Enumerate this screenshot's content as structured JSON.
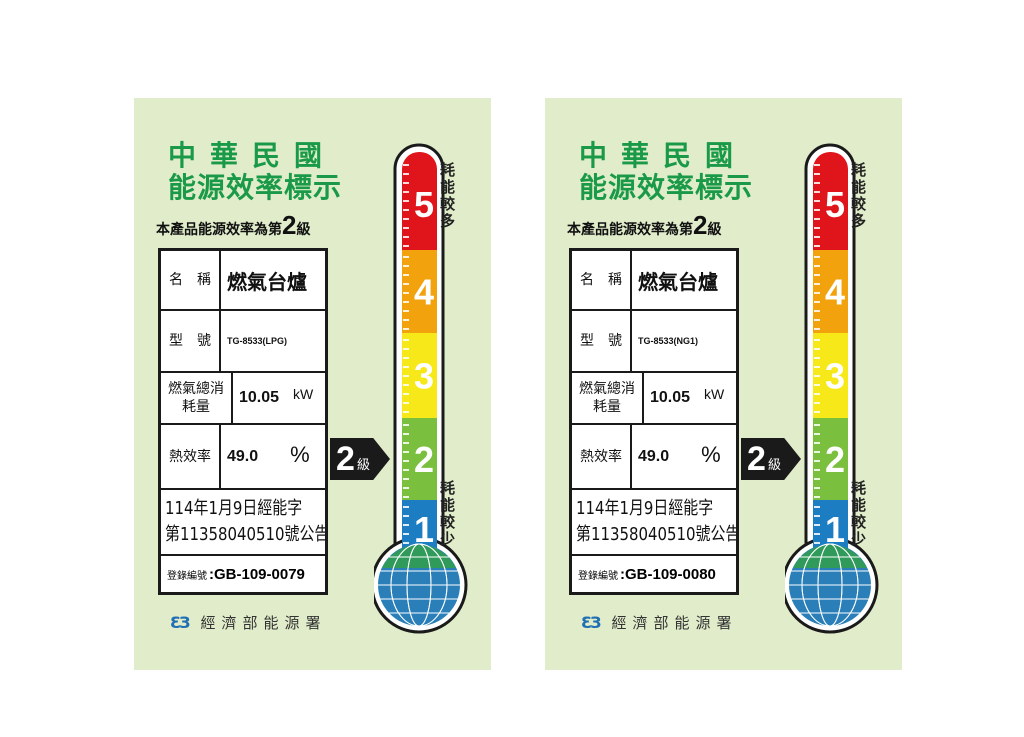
{
  "common": {
    "title_line1": "中華民國",
    "title_line2": "能源效率標示",
    "grade_prefix": "本產品能源效率為第",
    "grade_number": "2",
    "grade_suffix": "級",
    "name_key": "名　稱",
    "model_key": "型　號",
    "consumption_key": "燃氣總消耗量",
    "efficiency_key": "熱效率",
    "reg_key": "登錄編號",
    "agency": "經濟部能源署",
    "agency_logo": "ƐЗ",
    "more_energy": "耗能較多",
    "less_energy": "耗能較少",
    "scale": [
      "5",
      "4",
      "3",
      "2",
      "1"
    ],
    "scale_colors": [
      "#e0141b",
      "#f2a20c",
      "#f7e81a",
      "#7bbf3f",
      "#1c7dc3"
    ],
    "current_grade": 2,
    "title_color": "#1a9a48",
    "background": "#e1edca"
  },
  "labels": [
    {
      "product_name": "燃氣台爐",
      "model": "TG-8533(LPG)",
      "consumption": "10.05",
      "consumption_unit": "kW",
      "efficiency": "49.0",
      "efficiency_unit": "%",
      "announcement_line1": "114年1月9日經能字",
      "announcement_line2": "第11358040510號公告",
      "reg_number": ":GB-109-0079"
    },
    {
      "product_name": "燃氣台爐",
      "model": "TG-8533(NG1)",
      "consumption": "10.05",
      "consumption_unit": "kW",
      "efficiency": "49.0",
      "efficiency_unit": "%",
      "announcement_line1": "114年1月9日經能字",
      "announcement_line2": "第11358040510號公告",
      "reg_number": ":GB-109-0080"
    }
  ]
}
